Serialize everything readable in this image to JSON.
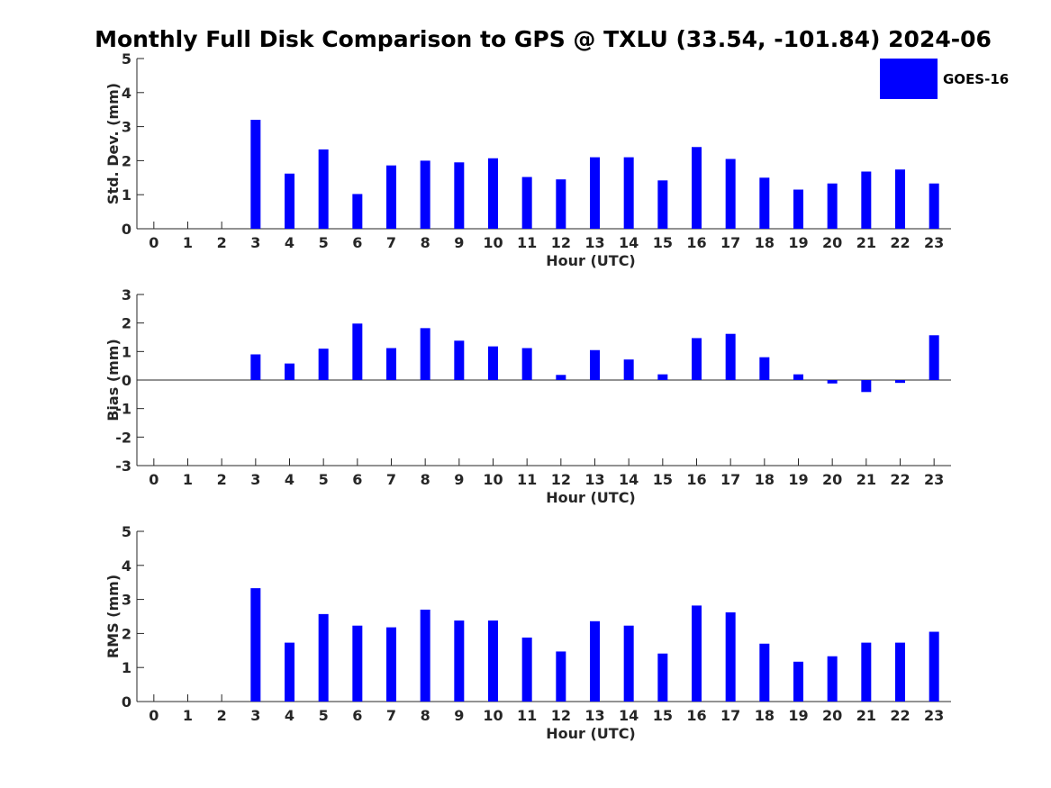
{
  "title": "Monthly Full Disk Comparison to GPS @ TXLU (33.54, -101.84) 2024-06",
  "legend": {
    "label": "GOES-16",
    "color": "#0000ff"
  },
  "chart_data": [
    {
      "type": "bar",
      "xlabel": "Hour (UTC)",
      "ylabel": "Std. Dev. (mm)",
      "xlim": [
        -0.5,
        23.5
      ],
      "ylim": [
        0,
        5
      ],
      "yticks": [
        0,
        1,
        2,
        3,
        4,
        5
      ],
      "categories": [
        "0",
        "1",
        "2",
        "3",
        "4",
        "5",
        "6",
        "7",
        "8",
        "9",
        "10",
        "11",
        "12",
        "13",
        "14",
        "15",
        "16",
        "17",
        "18",
        "19",
        "20",
        "21",
        "22",
        "23"
      ],
      "series": [
        {
          "name": "GOES-16",
          "values": [
            null,
            null,
            null,
            3.2,
            1.62,
            2.33,
            1.02,
            1.86,
            2.0,
            1.95,
            2.07,
            1.52,
            1.45,
            2.1,
            2.1,
            1.42,
            2.4,
            2.05,
            1.5,
            1.15,
            1.33,
            1.68,
            1.74,
            1.33
          ]
        }
      ],
      "color": "#0000ff",
      "grid": false,
      "legend": "top-right"
    },
    {
      "type": "bar",
      "xlabel": "Hour (UTC)",
      "ylabel": "Bias (mm)",
      "xlim": [
        -0.5,
        23.5
      ],
      "ylim": [
        -3,
        3
      ],
      "yticks": [
        -3,
        -2,
        -1,
        0,
        1,
        2,
        3
      ],
      "categories": [
        "0",
        "1",
        "2",
        "3",
        "4",
        "5",
        "6",
        "7",
        "8",
        "9",
        "10",
        "11",
        "12",
        "13",
        "14",
        "15",
        "16",
        "17",
        "18",
        "19",
        "20",
        "21",
        "22",
        "23"
      ],
      "series": [
        {
          "name": "GOES-16",
          "values": [
            null,
            null,
            null,
            0.9,
            0.58,
            1.1,
            1.98,
            1.12,
            1.82,
            1.38,
            1.18,
            1.12,
            0.18,
            1.05,
            0.72,
            0.2,
            1.47,
            1.62,
            0.8,
            0.2,
            -0.12,
            -0.42,
            -0.1,
            1.57
          ]
        }
      ],
      "color": "#0000ff",
      "grid": false
    },
    {
      "type": "bar",
      "xlabel": "Hour (UTC)",
      "ylabel": "RMS (mm)",
      "xlim": [
        -0.5,
        23.5
      ],
      "ylim": [
        0,
        5
      ],
      "yticks": [
        0,
        1,
        2,
        3,
        4,
        5
      ],
      "categories": [
        "0",
        "1",
        "2",
        "3",
        "4",
        "5",
        "6",
        "7",
        "8",
        "9",
        "10",
        "11",
        "12",
        "13",
        "14",
        "15",
        "16",
        "17",
        "18",
        "19",
        "20",
        "21",
        "22",
        "23"
      ],
      "series": [
        {
          "name": "GOES-16",
          "values": [
            null,
            null,
            null,
            3.33,
            1.73,
            2.57,
            2.23,
            2.18,
            2.7,
            2.38,
            2.38,
            1.88,
            1.47,
            2.36,
            2.23,
            1.41,
            2.82,
            2.62,
            1.7,
            1.17,
            1.33,
            1.73,
            1.73,
            2.05
          ]
        }
      ],
      "color": "#0000ff",
      "grid": false
    }
  ]
}
